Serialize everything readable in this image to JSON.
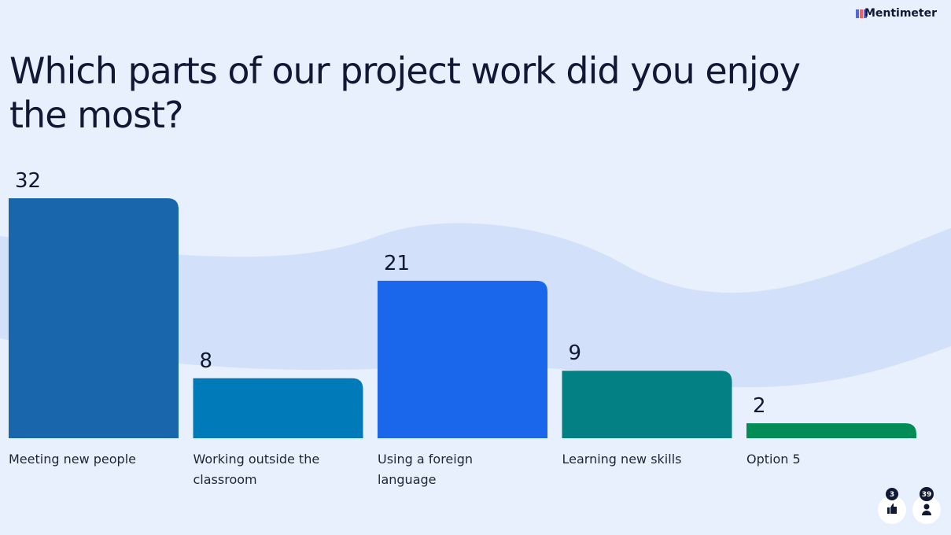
{
  "brand": "Mentimeter",
  "reactions": 3,
  "participants": 39,
  "chart_data": {
    "type": "bar",
    "title": "Which parts of our project work did you enjoy the most?",
    "categories": [
      "Meeting new people",
      "Working outside the classroom",
      "Using a foreign language",
      "Learning new skills",
      "Option 5"
    ],
    "values": [
      32,
      8,
      21,
      9,
      2
    ],
    "colors": [
      "#1a66ad",
      "#007ab8",
      "#1b67eb",
      "#028084",
      "#028c56"
    ]
  }
}
